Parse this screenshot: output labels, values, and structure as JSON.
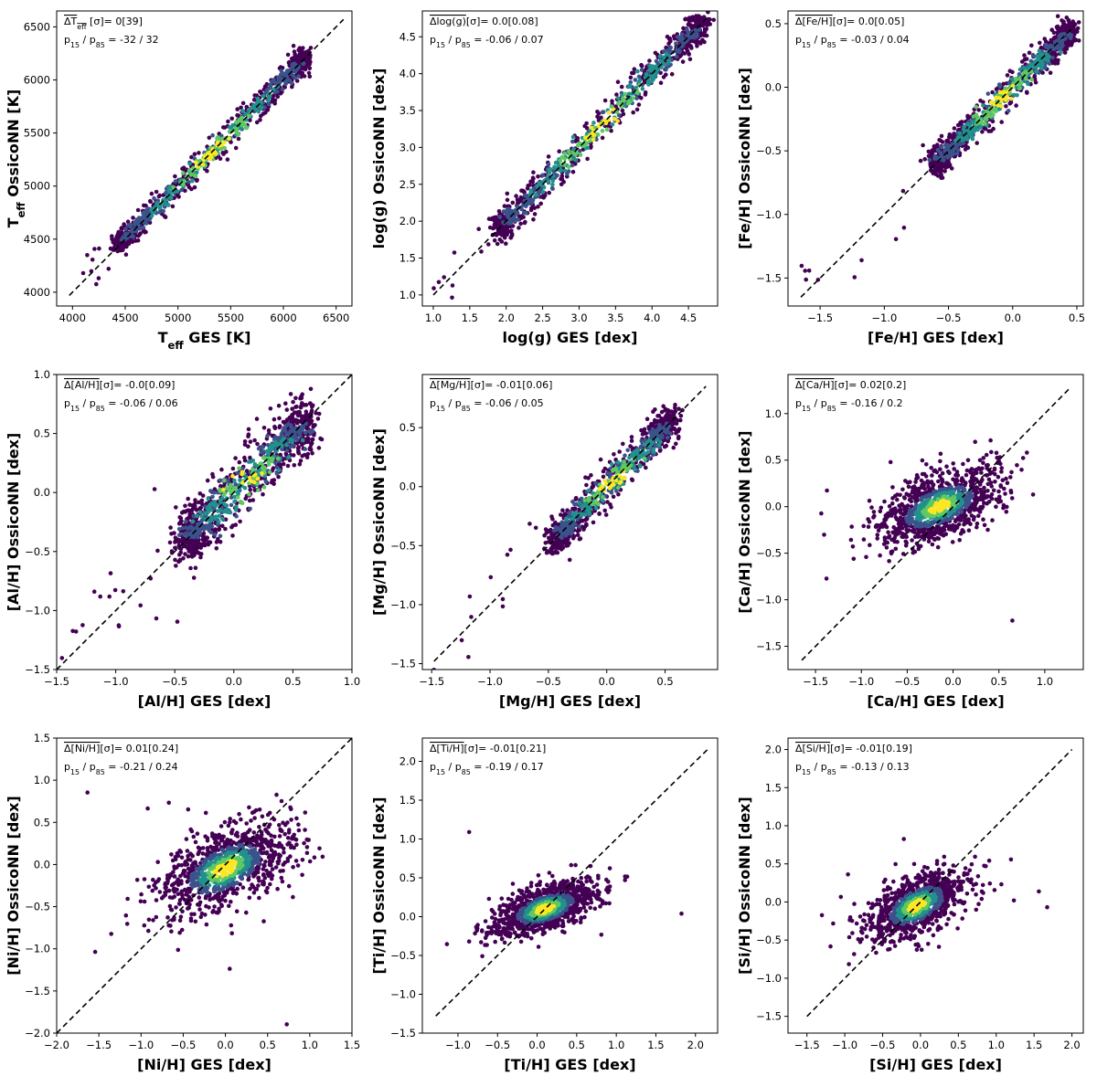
{
  "figure": {
    "rows": 3,
    "cols": 3
  },
  "chart_data": [
    {
      "type": "scatter",
      "id": "teff",
      "title": "",
      "xlabel": "T_eff GES [K]",
      "ylabel": "T_eff OssicoNN [K]",
      "xlabel_parts": [
        {
          "t": "T"
        },
        {
          "t": "eff",
          "sub": true
        },
        {
          "t": " GES [K]"
        }
      ],
      "ylabel_parts": [
        {
          "t": "T"
        },
        {
          "t": "eff",
          "sub": true
        },
        {
          "t": " OssicoNN [K]"
        }
      ],
      "xlim": [
        3850,
        6650
      ],
      "ylim": [
        3870,
        6650
      ],
      "xticks": [
        4000,
        4500,
        5000,
        5500,
        6000,
        6500
      ],
      "yticks": [
        4000,
        4500,
        5000,
        5500,
        6000,
        6500
      ],
      "xtick_labels": [
        "4000",
        "4500",
        "5000",
        "5500",
        "6000",
        "6500"
      ],
      "ytick_labels": [
        "4000",
        "4500",
        "5000",
        "5500",
        "6000",
        "6500"
      ],
      "identity_line": [
        3970,
        6570
      ],
      "annotation": {
        "stat": "ΔT_eff [σ]= 0[39]",
        "stat_parts": [
          {
            "t": "ΔT",
            "over": true
          },
          {
            "t": "eff",
            "sub": true,
            "over": true
          },
          {
            "t": " [σ]= 0[39]"
          }
        ],
        "pct": "p15 / p85 = -32 / 32",
        "pct_parts": [
          {
            "t": "p"
          },
          {
            "t": "15",
            "sub": true
          },
          {
            "t": " / p"
          },
          {
            "t": "85",
            "sub": true
          },
          {
            "t": " = -32 / 32"
          }
        ]
      },
      "density": {
        "center": [
          4450,
          6200
        ],
        "sigma": 52,
        "n": 900,
        "n_outliers": 12,
        "outlier_sigma": 130
      }
    },
    {
      "type": "scatter",
      "id": "logg",
      "title": "",
      "xlabel": "log(g) GES [dex]",
      "ylabel": "log(g) OssicoNN [dex]",
      "xlabel_parts": [
        {
          "t": "log(g) GES [dex]"
        }
      ],
      "ylabel_parts": [
        {
          "t": "log(g) OssicoNN [dex]"
        }
      ],
      "xlim": [
        0.85,
        4.9
      ],
      "ylim": [
        0.85,
        4.85
      ],
      "xticks": [
        1.0,
        1.5,
        2.0,
        2.5,
        3.0,
        3.5,
        4.0,
        4.5
      ],
      "yticks": [
        1.0,
        1.5,
        2.0,
        2.5,
        3.0,
        3.5,
        4.0,
        4.5
      ],
      "xtick_labels": [
        "1.0",
        "1.5",
        "2.0",
        "2.5",
        "3.0",
        "3.5",
        "4.0",
        "4.5"
      ],
      "ytick_labels": [
        "1.0",
        "1.5",
        "2.0",
        "2.5",
        "3.0",
        "3.5",
        "4.0",
        "4.5"
      ],
      "identity_line": [
        1.0,
        4.75
      ],
      "annotation": {
        "stat": "Δlog(g)[σ]= 0.0[0.08]",
        "stat_parts": [
          {
            "t": "Δlog(g)",
            "over": true
          },
          {
            "t": "[σ]= 0.0[0.08]"
          }
        ],
        "pct": "p15 / p85 = -0.06 / 0.07",
        "pct_parts": [
          {
            "t": "p"
          },
          {
            "t": "15",
            "sub": true
          },
          {
            "t": " / p"
          },
          {
            "t": "85",
            "sub": true
          },
          {
            "t": " = -0.06 / 0.07"
          }
        ]
      },
      "density": {
        "center": [
          1.9,
          4.7
        ],
        "sigma": 0.09,
        "n": 900,
        "n_outliers": 10,
        "outlier_sigma": 0.2
      }
    },
    {
      "type": "scatter",
      "id": "feh",
      "title": "",
      "xlabel": "[Fe/H] GES [dex]",
      "ylabel": "[Fe/H] OssicoNN [dex]",
      "xlabel_parts": [
        {
          "t": "[Fe/H] GES [dex]"
        }
      ],
      "ylabel_parts": [
        {
          "t": "[Fe/H] OssicoNN [dex]"
        }
      ],
      "xlim": [
        -1.75,
        0.55
      ],
      "ylim": [
        -1.72,
        0.6
      ],
      "xticks": [
        -1.5,
        -1.0,
        -0.5,
        0.0,
        0.5
      ],
      "yticks": [
        -1.5,
        -1.0,
        -0.5,
        0.0,
        0.5
      ],
      "xtick_labels": [
        "−1.5",
        "−1.0",
        "−0.5",
        "0.0",
        "0.5"
      ],
      "ytick_labels": [
        "−1.5",
        "−1.0",
        "−0.5",
        "0.0",
        "0.5"
      ],
      "identity_line": [
        -1.65,
        0.48
      ],
      "annotation": {
        "stat": "Δ[Fe/H][σ]= 0.0[0.05]",
        "stat_parts": [
          {
            "t": "Δ[Fe/H]",
            "over": true
          },
          {
            "t": "[σ]= 0.0[0.05]"
          }
        ],
        "pct": "p15 / p85 = -0.03 / 0.04",
        "pct_parts": [
          {
            "t": "p"
          },
          {
            "t": "15",
            "sub": true
          },
          {
            "t": " / p"
          },
          {
            "t": "85",
            "sub": true
          },
          {
            "t": " = -0.03 / 0.04"
          }
        ]
      },
      "density": {
        "center": [
          -0.6,
          0.45
        ],
        "sigma": 0.05,
        "n": 900,
        "n_outliers": 12,
        "outlier_sigma": 0.15
      }
    },
    {
      "type": "scatter",
      "id": "alh",
      "title": "",
      "xlabel": "[Al/H] GES [dex]",
      "ylabel": "[Al/H] OssicoNN [dex]",
      "xlabel_parts": [
        {
          "t": "[Al/H] GES [dex]"
        }
      ],
      "ylabel_parts": [
        {
          "t": "[Al/H] OssicoNN [dex]"
        }
      ],
      "xlim": [
        -1.5,
        1.0
      ],
      "ylim": [
        -1.5,
        1.0
      ],
      "xticks": [
        -1.5,
        -1.0,
        -0.5,
        0.0,
        0.5,
        1.0
      ],
      "yticks": [
        -1.5,
        -1.0,
        -0.5,
        0.0,
        0.5,
        1.0
      ],
      "xtick_labels": [
        "−1.5",
        "−1.0",
        "−0.5",
        "0.0",
        "0.5",
        "1.0"
      ],
      "ytick_labels": [
        "−1.5",
        "−1.0",
        "−0.5",
        "0.0",
        "0.5",
        "1.0"
      ],
      "identity_line": [
        -1.5,
        1.0
      ],
      "annotation": {
        "stat": "Δ[Al/H][σ]= -0.0[0.09]",
        "stat_parts": [
          {
            "t": "Δ[Al/H]",
            "over": true
          },
          {
            "t": "[σ]= -0.0[0.09]"
          }
        ],
        "pct": "p15 / p85 = -0.06 / 0.06",
        "pct_parts": [
          {
            "t": "p"
          },
          {
            "t": "15",
            "sub": true
          },
          {
            "t": " / p"
          },
          {
            "t": "85",
            "sub": true
          },
          {
            "t": " = -0.06 / 0.06"
          }
        ]
      },
      "density": {
        "center": [
          -0.4,
          0.6
        ],
        "sigma": 0.1,
        "n": 1000,
        "n_outliers": 25,
        "outlier_sigma": 0.3
      }
    },
    {
      "type": "scatter",
      "id": "mgh",
      "title": "",
      "xlabel": "[Mg/H] GES [dex]",
      "ylabel": "[Mg/H] OssicoNN [dex]",
      "xlabel_parts": [
        {
          "t": "[Mg/H] GES [dex]"
        }
      ],
      "ylabel_parts": [
        {
          "t": "[Mg/H] OssicoNN [dex]"
        }
      ],
      "xlim": [
        -1.58,
        0.95
      ],
      "ylim": [
        -1.55,
        0.95
      ],
      "xticks": [
        -1.5,
        -1.0,
        -0.5,
        0.0,
        0.5
      ],
      "yticks": [
        -1.5,
        -1.0,
        -0.5,
        0.0,
        0.5
      ],
      "xtick_labels": [
        "−1.5",
        "−1.0",
        "−0.5",
        "0.0",
        "0.5"
      ],
      "ytick_labels": [
        "−1.5",
        "−1.0",
        "−0.5",
        "0.0",
        "0.5"
      ],
      "identity_line": [
        -1.48,
        0.85
      ],
      "annotation": {
        "stat": "Δ[Mg/H][σ]= -0.01[0.06]",
        "stat_parts": [
          {
            "t": "Δ[Mg/H]",
            "over": true
          },
          {
            "t": "[σ]= -0.01[0.06]"
          }
        ],
        "pct": "p15 / p85 = -0.06 / 0.05",
        "pct_parts": [
          {
            "t": "p"
          },
          {
            "t": "15",
            "sub": true
          },
          {
            "t": " / p"
          },
          {
            "t": "85",
            "sub": true
          },
          {
            "t": " = -0.06 / 0.05"
          }
        ]
      },
      "density": {
        "center": [
          -0.45,
          0.55
        ],
        "sigma": 0.06,
        "n": 900,
        "n_outliers": 15,
        "outlier_sigma": 0.2
      }
    },
    {
      "type": "scatter",
      "id": "cah",
      "title": "",
      "xlabel": "[Ca/H] GES [dex]",
      "ylabel": "[Ca/H] OssicoNN [dex]",
      "xlabel_parts": [
        {
          "t": "[Ca/H] GES [dex]"
        }
      ],
      "ylabel_parts": [
        {
          "t": "[Ca/H] OssicoNN [dex]"
        }
      ],
      "xlim": [
        -1.8,
        1.42
      ],
      "ylim": [
        -1.75,
        1.42
      ],
      "xticks": [
        -1.5,
        -1.0,
        -0.5,
        0.0,
        0.5,
        1.0
      ],
      "yticks": [
        -1.5,
        -1.0,
        -0.5,
        0.0,
        0.5,
        1.0
      ],
      "xtick_labels": [
        "−1.5",
        "−1.0",
        "−0.5",
        "0.0",
        "0.5",
        "1.0"
      ],
      "ytick_labels": [
        "−1.5",
        "−1.0",
        "−0.5",
        "0.0",
        "0.5",
        "1.0"
      ],
      "identity_line": [
        -1.65,
        1.28
      ],
      "annotation": {
        "stat": "Δ[Ca/H][σ]= 0.02[0.2]",
        "stat_parts": [
          {
            "t": "Δ[Ca/H]",
            "over": true
          },
          {
            "t": "[σ]= 0.02[0.2]"
          }
        ],
        "pct": "p15 / p85 = -0.16 / 0.2",
        "pct_parts": [
          {
            "t": "p"
          },
          {
            "t": "15",
            "sub": true
          },
          {
            "t": " / p"
          },
          {
            "t": "85",
            "sub": true
          },
          {
            "t": " = -0.16 / 0.2"
          }
        ]
      },
      "density": {
        "center": [
          -0.15,
          0.0
        ],
        "spread_x": 0.33,
        "spread_y": 0.2,
        "n": 1000,
        "n_outliers": 20,
        "outlier_sigma": 0.5
      }
    },
    {
      "type": "scatter",
      "id": "nih",
      "title": "",
      "xlabel": "[Ni/H] GES [dex]",
      "ylabel": "[Ni/H] OssicoNN [dex]",
      "xlabel_parts": [
        {
          "t": "[Ni/H] GES [dex]"
        }
      ],
      "ylabel_parts": [
        {
          "t": "[Ni/H] OssicoNN [dex]"
        }
      ],
      "xlim": [
        -2.0,
        1.5
      ],
      "ylim": [
        -2.0,
        1.5
      ],
      "xticks": [
        -2.0,
        -1.5,
        -1.0,
        -0.5,
        0.0,
        0.5,
        1.0,
        1.5
      ],
      "yticks": [
        -2.0,
        -1.5,
        -1.0,
        -0.5,
        0.0,
        0.5,
        1.0,
        1.5
      ],
      "xtick_labels": [
        "−2.0",
        "−1.5",
        "−1.0",
        "−0.5",
        "0.0",
        "0.5",
        "1.0",
        "1.5"
      ],
      "ytick_labels": [
        "−2.0",
        "−1.5",
        "−1.0",
        "−0.5",
        "0.0",
        "0.5",
        "1.0",
        "1.5"
      ],
      "identity_line": [
        -2.0,
        1.5
      ],
      "annotation": {
        "stat": "Δ[Ni/H][σ]= 0.01[0.24]",
        "stat_parts": [
          {
            "t": "Δ[Ni/H]",
            "over": true
          },
          {
            "t": "[σ]= 0.01[0.24]"
          }
        ],
        "pct": "p15 / p85 = -0.21 / 0.24",
        "pct_parts": [
          {
            "t": "p"
          },
          {
            "t": "15",
            "sub": true
          },
          {
            "t": " / p"
          },
          {
            "t": "85",
            "sub": true
          },
          {
            "t": " = -0.21 / 0.24"
          }
        ]
      },
      "density": {
        "center": [
          0.0,
          -0.05
        ],
        "spread_x": 0.38,
        "spread_y": 0.26,
        "n": 1000,
        "n_outliers": 18,
        "outlier_sigma": 0.6
      }
    },
    {
      "type": "scatter",
      "id": "tih",
      "title": "",
      "xlabel": "[Ti/H] GES [dex]",
      "ylabel": "[Ti/H] OssicoNN [dex]",
      "xlabel_parts": [
        {
          "t": "[Ti/H] GES [dex]"
        }
      ],
      "ylabel_parts": [
        {
          "t": "[Ti/H] OssicoNN [dex]"
        }
      ],
      "xlim": [
        -1.45,
        2.28
      ],
      "ylim": [
        -1.5,
        2.3
      ],
      "xticks": [
        -1.0,
        -0.5,
        0.0,
        0.5,
        1.0,
        1.5,
        2.0
      ],
      "yticks": [
        -1.5,
        -1.0,
        -0.5,
        0.0,
        0.5,
        1.0,
        1.5,
        2.0
      ],
      "xtick_labels": [
        "−1.0",
        "−0.5",
        "0.0",
        "0.5",
        "1.0",
        "1.5",
        "2.0"
      ],
      "ytick_labels": [
        "−1.5",
        "−1.0",
        "−0.5",
        "0.0",
        "0.5",
        "1.0",
        "1.5",
        "2.0"
      ],
      "identity_line": [
        -1.28,
        2.15
      ],
      "annotation": {
        "stat": "Δ[Ti/H][σ]= -0.01[0.21]",
        "stat_parts": [
          {
            "t": "Δ[Ti/H]",
            "over": true
          },
          {
            "t": "[σ]= -0.01[0.21]"
          }
        ],
        "pct": "p15 / p85 = -0.19 / 0.17",
        "pct_parts": [
          {
            "t": "p"
          },
          {
            "t": "15",
            "sub": true
          },
          {
            "t": " / p"
          },
          {
            "t": "85",
            "sub": true
          },
          {
            "t": " = -0.19 / 0.17"
          }
        ]
      },
      "density": {
        "center": [
          0.1,
          0.1
        ],
        "spread_x": 0.32,
        "spread_y": 0.17,
        "n": 1000,
        "n_outliers": 15,
        "outlier_sigma": 0.5
      }
    },
    {
      "type": "scatter",
      "id": "sih",
      "title": "",
      "xlabel": "[Si/H] GES [dex]",
      "ylabel": "[Si/H] OssicoNN [dex]",
      "xlabel_parts": [
        {
          "t": "[Si/H] GES [dex]"
        }
      ],
      "ylabel_parts": [
        {
          "t": "[Si/H] OssicoNN [dex]"
        }
      ],
      "xlim": [
        -1.75,
        2.15
      ],
      "ylim": [
        -1.72,
        2.15
      ],
      "xticks": [
        -1.5,
        -1.0,
        -0.5,
        0.0,
        0.5,
        1.0,
        1.5,
        2.0
      ],
      "yticks": [
        -1.5,
        -1.0,
        -0.5,
        0.0,
        0.5,
        1.0,
        1.5,
        2.0
      ],
      "xtick_labels": [
        "−1.5",
        "−1.0",
        "−0.5",
        "0.0",
        "0.5",
        "1.0",
        "1.5",
        "2.0"
      ],
      "ytick_labels": [
        "−1.5",
        "−1.0",
        "−0.5",
        "0.0",
        "0.5",
        "1.0",
        "1.5",
        "2.0"
      ],
      "identity_line": [
        -1.5,
        2.0
      ],
      "annotation": {
        "stat": "Δ[Si/H][σ]= -0.01[0.19]",
        "stat_parts": [
          {
            "t": "Δ[Si/H]",
            "over": true
          },
          {
            "t": "[σ]= -0.01[0.19]"
          }
        ],
        "pct": "p15 / p85 = -0.13 / 0.13",
        "pct_parts": [
          {
            "t": "p"
          },
          {
            "t": "15",
            "sub": true
          },
          {
            "t": " / p"
          },
          {
            "t": "85",
            "sub": true
          },
          {
            "t": " = -0.13 / 0.13"
          }
        ]
      },
      "density": {
        "center": [
          -0.05,
          -0.05
        ],
        "spread_x": 0.32,
        "spread_y": 0.22,
        "n": 1000,
        "n_outliers": 18,
        "outlier_sigma": 0.5
      }
    }
  ],
  "colormap": [
    "#440154",
    "#3b528b",
    "#21918c",
    "#5ec962",
    "#fde725"
  ]
}
